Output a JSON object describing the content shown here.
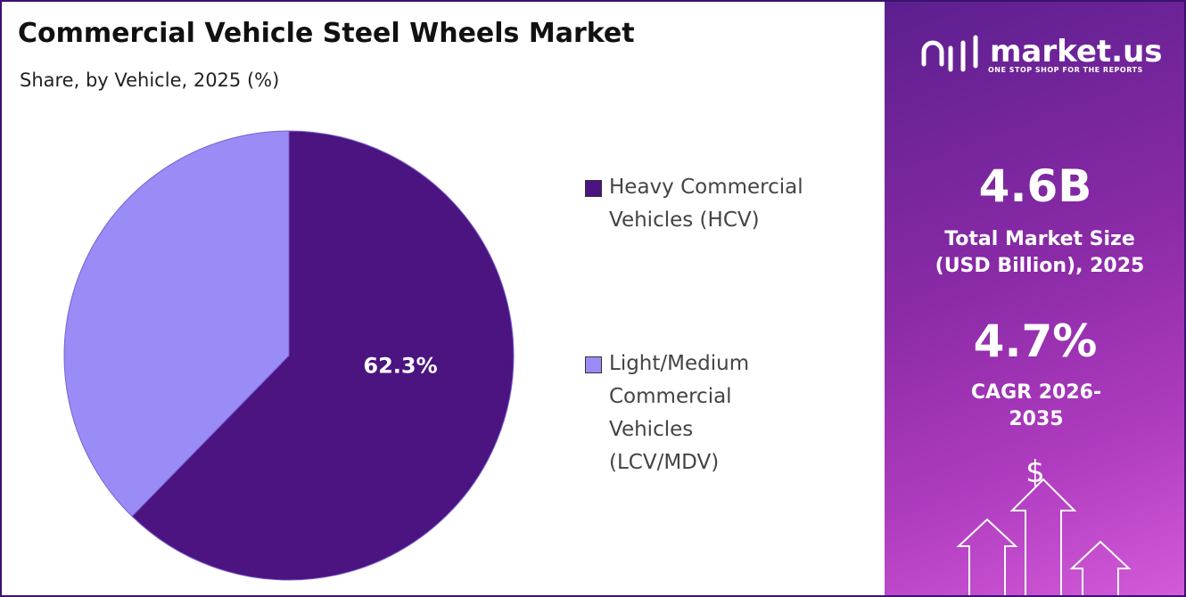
{
  "chart_data": {
    "type": "pie",
    "title": "Commercial Vehicle Steel Wheels Market",
    "subtitle": "Share, by Vehicle, 2025 (%)",
    "categories": [
      "Heavy Commercial Vehicles (HCV)",
      "Light/Medium Commercial Vehicles (LCV/MDV)"
    ],
    "values": [
      62.3,
      37.7
    ],
    "value_labels": [
      "62.3%",
      null
    ],
    "colors": [
      "#4b1480",
      "#9a8cf7"
    ]
  },
  "panel": {
    "logo": "market.us",
    "tagline": "ONE STOP SHOP FOR THE REPORTS",
    "market_size": "4.6B",
    "market_size_label": "Total Market Size (USD Billion), 2025",
    "cagr": "4.7%",
    "cagr_label": "CAGR 2026-2035",
    "currency": "$"
  }
}
